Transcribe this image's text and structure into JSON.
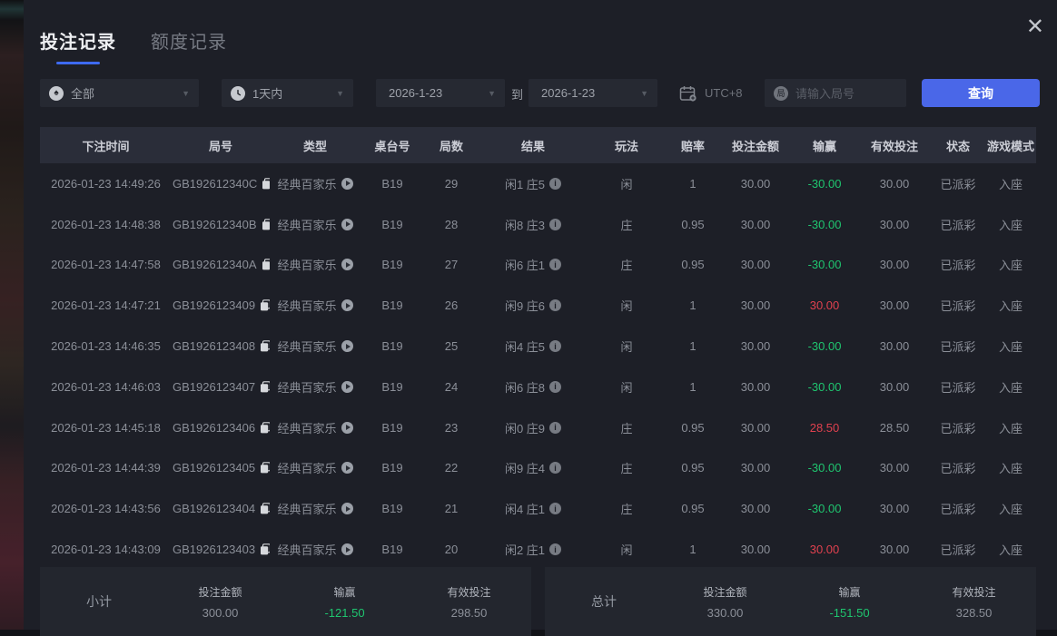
{
  "modal": {
    "tabs": [
      {
        "label": "投注记录",
        "active": true
      },
      {
        "label": "额度记录",
        "active": false
      }
    ],
    "close_glyph": "✕"
  },
  "filters": {
    "game_type": {
      "value": "全部",
      "icon": "spade-circle-icon",
      "icon_glyph": "♠"
    },
    "time_range": {
      "value": "1天内",
      "icon": "clock-circle-icon"
    },
    "date_from": "2026-1-23",
    "to_label": "到",
    "date_to": "2026-1-23",
    "timezone_label": "UTC+8",
    "round_input": {
      "placeholder": "请输入局号",
      "value": "",
      "icon_glyph": "局"
    },
    "query_button": "查询",
    "chevron_glyph": "▼"
  },
  "table": {
    "headers": [
      "下注时间",
      "局号",
      "类型",
      "桌台号",
      "局数",
      "结果",
      "玩法",
      "赔率",
      "投注金额",
      "输赢",
      "有效投注",
      "状态",
      "游戏模式"
    ],
    "rows": [
      {
        "time": "2026-01-23 14:49:26",
        "id": "GB192612340C",
        "type": "经典百家乐",
        "table_no": "B19",
        "round": "29",
        "result": "闲1 庄5",
        "play": "闲",
        "odds": "1",
        "bet": "30.00",
        "winloss": "-30.00",
        "valid": "30.00",
        "status": "已派彩",
        "mode": "入座"
      },
      {
        "time": "2026-01-23 14:48:38",
        "id": "GB192612340B",
        "type": "经典百家乐",
        "table_no": "B19",
        "round": "28",
        "result": "闲8 庄3",
        "play": "庄",
        "odds": "0.95",
        "bet": "30.00",
        "winloss": "-30.00",
        "valid": "30.00",
        "status": "已派彩",
        "mode": "入座"
      },
      {
        "time": "2026-01-23 14:47:58",
        "id": "GB192612340A",
        "type": "经典百家乐",
        "table_no": "B19",
        "round": "27",
        "result": "闲6 庄1",
        "play": "庄",
        "odds": "0.95",
        "bet": "30.00",
        "winloss": "-30.00",
        "valid": "30.00",
        "status": "已派彩",
        "mode": "入座"
      },
      {
        "time": "2026-01-23 14:47:21",
        "id": "GB1926123409",
        "type": "经典百家乐",
        "table_no": "B19",
        "round": "26",
        "result": "闲9 庄6",
        "play": "闲",
        "odds": "1",
        "bet": "30.00",
        "winloss": "30.00",
        "valid": "30.00",
        "status": "已派彩",
        "mode": "入座"
      },
      {
        "time": "2026-01-23 14:46:35",
        "id": "GB1926123408",
        "type": "经典百家乐",
        "table_no": "B19",
        "round": "25",
        "result": "闲4 庄5",
        "play": "闲",
        "odds": "1",
        "bet": "30.00",
        "winloss": "-30.00",
        "valid": "30.00",
        "status": "已派彩",
        "mode": "入座"
      },
      {
        "time": "2026-01-23 14:46:03",
        "id": "GB1926123407",
        "type": "经典百家乐",
        "table_no": "B19",
        "round": "24",
        "result": "闲6 庄8",
        "play": "闲",
        "odds": "1",
        "bet": "30.00",
        "winloss": "-30.00",
        "valid": "30.00",
        "status": "已派彩",
        "mode": "入座"
      },
      {
        "time": "2026-01-23 14:45:18",
        "id": "GB1926123406",
        "type": "经典百家乐",
        "table_no": "B19",
        "round": "23",
        "result": "闲0 庄9",
        "play": "庄",
        "odds": "0.95",
        "bet": "30.00",
        "winloss": "28.50",
        "valid": "28.50",
        "status": "已派彩",
        "mode": "入座"
      },
      {
        "time": "2026-01-23 14:44:39",
        "id": "GB1926123405",
        "type": "经典百家乐",
        "table_no": "B19",
        "round": "22",
        "result": "闲9 庄4",
        "play": "庄",
        "odds": "0.95",
        "bet": "30.00",
        "winloss": "-30.00",
        "valid": "30.00",
        "status": "已派彩",
        "mode": "入座"
      },
      {
        "time": "2026-01-23 14:43:56",
        "id": "GB1926123404",
        "type": "经典百家乐",
        "table_no": "B19",
        "round": "21",
        "result": "闲4 庄1",
        "play": "庄",
        "odds": "0.95",
        "bet": "30.00",
        "winloss": "-30.00",
        "valid": "30.00",
        "status": "已派彩",
        "mode": "入座"
      },
      {
        "time": "2026-01-23 14:43:09",
        "id": "GB1926123403",
        "type": "经典百家乐",
        "table_no": "B19",
        "round": "20",
        "result": "闲2 庄1",
        "play": "闲",
        "odds": "1",
        "bet": "30.00",
        "winloss": "30.00",
        "valid": "30.00",
        "status": "已派彩",
        "mode": "入座"
      }
    ],
    "row_icons": {
      "copy": "copy-icon",
      "replay": "replay-icon",
      "info": "info-icon"
    }
  },
  "summary": {
    "subtotal": {
      "label": "小计",
      "items": [
        {
          "label": "投注金额",
          "value": "300.00"
        },
        {
          "label": "输赢",
          "value": "-121.50"
        },
        {
          "label": "有效投注",
          "value": "298.50"
        }
      ]
    },
    "total": {
      "label": "总计",
      "items": [
        {
          "label": "投注金额",
          "value": "330.00"
        },
        {
          "label": "输赢",
          "value": "-151.50"
        },
        {
          "label": "有效投注",
          "value": "328.50"
        }
      ]
    }
  },
  "colors": {
    "accent_blue": "#4a67e8",
    "tab_underline": "#3e6af0",
    "win_red": "#e0414f",
    "loss_green": "#1fc56f",
    "header_bg": "#2a2d39",
    "modal_bg": "#1d1f27"
  }
}
